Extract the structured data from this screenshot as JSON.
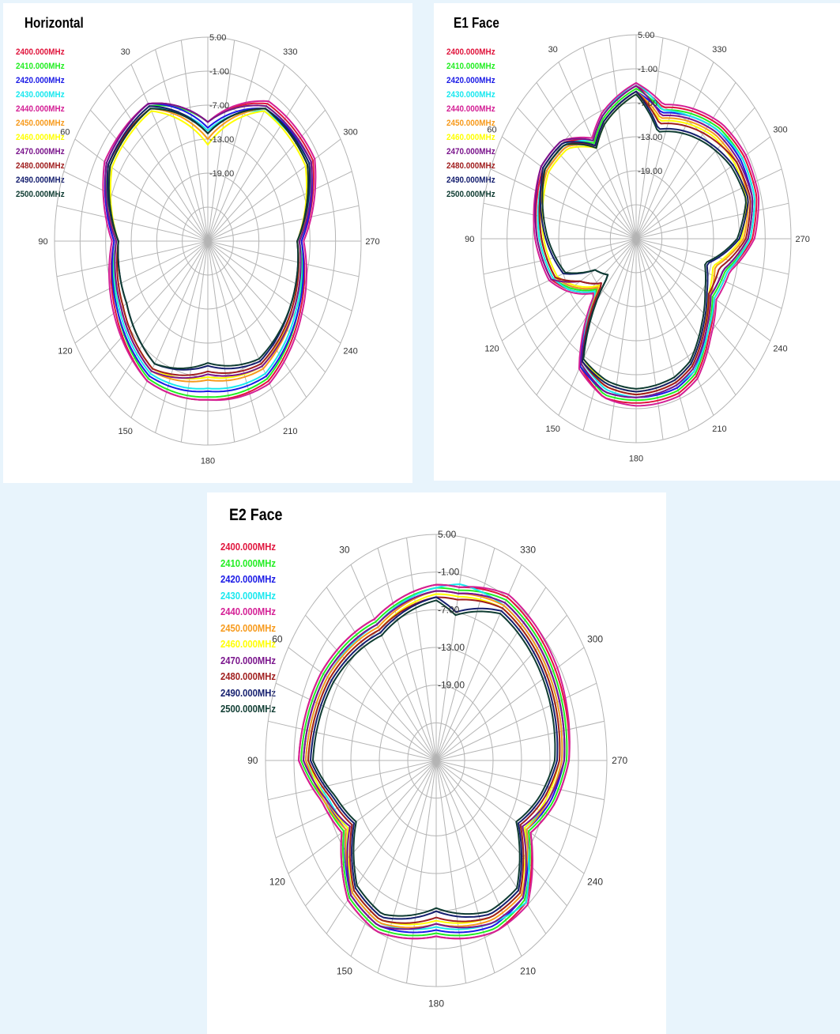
{
  "series_colors": [
    "#e0143c",
    "#22ee22",
    "#1a1ae6",
    "#19e8ef",
    "#d41f95",
    "#f79a1c",
    "#ffff00",
    "#7a148c",
    "#a01e1e",
    "#141e6e",
    "#0f3c32"
  ],
  "chart_data": [
    {
      "type": "polar-line",
      "title": "Horizontal",
      "legend": [
        "2400.000MHz",
        "2410.000MHz",
        "2420.000MHz",
        "2430.000MHz",
        "2440.000MHz",
        "2450.000MHz",
        "2460.000MHz",
        "2470.000MHz",
        "2480.000MHz",
        "2490.000MHz",
        "2500.000MHz"
      ],
      "radial_ticks": [
        "5.00",
        "-1.00",
        "-7.00",
        "-13.00",
        "-19.00"
      ],
      "angle_ticks": [
        "30",
        "60",
        "90",
        "120",
        "150",
        "180",
        "210",
        "240",
        "270",
        "300",
        "330"
      ],
      "rlim": [
        -31,
        5
      ],
      "theta": [
        0,
        30,
        60,
        90,
        120,
        150,
        180,
        210,
        240,
        270,
        300,
        330
      ],
      "series": [
        {
          "values": [
            -10,
            -3,
            -3.5,
            -9,
            -6,
            -2.5,
            -3,
            -2.5,
            -6,
            -9,
            -2.5,
            -3
          ]
        },
        {
          "values": [
            -10,
            -3.5,
            -4,
            -9.5,
            -6.5,
            -3,
            -3.5,
            -3,
            -6.5,
            -9.5,
            -3,
            -3.5
          ]
        },
        {
          "values": [
            -11,
            -3,
            -3.5,
            -9,
            -6.5,
            -3.5,
            -4.5,
            -3.5,
            -6.5,
            -9,
            -3,
            -4
          ]
        },
        {
          "values": [
            -11.5,
            -4,
            -4.5,
            -9.5,
            -7,
            -4,
            -5,
            -4,
            -7,
            -9.5,
            -3.5,
            -4.5
          ]
        },
        {
          "values": [
            -10,
            -3,
            -3,
            -8.5,
            -5.5,
            -2.5,
            -3,
            -2,
            -5.5,
            -8.5,
            -2,
            -2.5
          ]
        },
        {
          "values": [
            -13,
            -4,
            -4.5,
            -9.5,
            -7.5,
            -4.5,
            -6.5,
            -5,
            -7.5,
            -9.5,
            -4,
            -4
          ]
        },
        {
          "values": [
            -14,
            -4.5,
            -5,
            -10,
            -8,
            -5,
            -7,
            -5.5,
            -8,
            -10,
            -4.5,
            -4.5
          ]
        },
        {
          "values": [
            -10,
            -3,
            -3.5,
            -9.5,
            -7.5,
            -4.5,
            -7.5,
            -5.5,
            -7.5,
            -9.5,
            -3,
            -3.5
          ]
        },
        {
          "values": [
            -12,
            -4,
            -4,
            -10,
            -8,
            -5,
            -8,
            -6,
            -8,
            -10,
            -4,
            -4
          ]
        },
        {
          "values": [
            -12,
            -3.5,
            -4,
            -10,
            -9,
            -6,
            -9,
            -6.5,
            -8.5,
            -10,
            -3.5,
            -4
          ]
        },
        {
          "values": [
            -12,
            -4,
            -4.5,
            -10,
            -9,
            -6,
            -9.5,
            -7,
            -8.5,
            -10,
            -4,
            -4
          ]
        }
      ]
    },
    {
      "type": "polar-line",
      "title": "E1 Face",
      "legend": [
        "2400.000MHz",
        "2410.000MHz",
        "2420.000MHz",
        "2430.000MHz",
        "2440.000MHz",
        "2450.000MHz",
        "2460.000MHz",
        "2470.000MHz",
        "2480.000MHz",
        "2490.000MHz",
        "2500.000MHz"
      ],
      "radial_ticks": [
        "5.00",
        "-1.00",
        "-7.00",
        "-13.00",
        "-19.00"
      ],
      "angle_ticks": [
        "30",
        "60",
        "90",
        "120",
        "150",
        "180",
        "210",
        "240",
        "270",
        "300",
        "330"
      ],
      "rlim": [
        -31,
        5
      ],
      "theta": [
        0,
        20,
        30,
        45,
        60,
        90,
        110,
        120,
        135,
        150,
        165,
        180,
        200,
        210,
        225,
        240,
        255,
        270,
        285,
        300,
        315,
        330,
        345
      ],
      "series": [
        {
          "values": [
            -4,
            -8,
            -11,
            -7,
            -6,
            -8,
            -10,
            -13,
            -18,
            -5,
            -2,
            -2,
            -2,
            -3,
            -7,
            -10,
            -9,
            -4,
            -2,
            -2,
            -3,
            -5,
            -7
          ]
        },
        {
          "values": [
            -4.5,
            -8.5,
            -11.5,
            -7.5,
            -6.5,
            -8.5,
            -10.5,
            -13.5,
            -18.5,
            -5.5,
            -2.5,
            -2.5,
            -2.5,
            -3.5,
            -7.5,
            -10.5,
            -9.5,
            -4.5,
            -2.5,
            -2.5,
            -3.5,
            -5.5,
            -7.5
          ]
        },
        {
          "values": [
            -5,
            -9,
            -12,
            -8,
            -7,
            -9,
            -11,
            -14,
            -19,
            -5,
            -3,
            -3,
            -3,
            -4,
            -8,
            -11,
            -10,
            -5,
            -3,
            -3,
            -4,
            -6,
            -8
          ]
        },
        {
          "values": [
            -3.5,
            -8,
            -11,
            -7.5,
            -6.5,
            -8.5,
            -10.5,
            -13,
            -18,
            -6,
            -3.5,
            -3,
            -3.5,
            -4,
            -7.5,
            -10,
            -9,
            -4.5,
            -2.5,
            -2.5,
            -4,
            -6,
            -7.5
          ]
        },
        {
          "values": [
            -3.5,
            -7.5,
            -10.5,
            -6.5,
            -5.5,
            -7.5,
            -9.5,
            -12.5,
            -17.5,
            -4.5,
            -2,
            -1.5,
            -1.5,
            -2.5,
            -6.5,
            -9.5,
            -8.5,
            -3.5,
            -1.5,
            -1.5,
            -2.5,
            -4.5,
            -6.5
          ]
        },
        {
          "values": [
            -5,
            -9,
            -12,
            -8,
            -7,
            -9,
            -11,
            -14,
            -19,
            -6,
            -4,
            -3.5,
            -4,
            -5,
            -8.5,
            -11,
            -12,
            -6,
            -4,
            -4,
            -5,
            -7,
            -9
          ]
        },
        {
          "values": [
            -5.5,
            -9.5,
            -12.5,
            -8.5,
            -7.5,
            -9.5,
            -11.5,
            -14.5,
            -19.5,
            -6.5,
            -4.5,
            -4,
            -4.5,
            -5.5,
            -9,
            -11.5,
            -12.5,
            -6.5,
            -4.5,
            -4.5,
            -5.5,
            -7.5,
            -9.5
          ]
        },
        {
          "values": [
            -4,
            -8,
            -11,
            -6.5,
            -5.5,
            -8,
            -10,
            -16,
            -20,
            -5.5,
            -3,
            -3,
            -3.5,
            -4.5,
            -8,
            -11,
            -10,
            -5,
            -3,
            -3.5,
            -4.5,
            -6.5,
            -8.5
          ]
        },
        {
          "values": [
            -5,
            -9,
            -12,
            -7.5,
            -6.5,
            -9,
            -11,
            -16,
            -20,
            -6,
            -4,
            -3.5,
            -4,
            -5,
            -8.5,
            -11.5,
            -11,
            -5.5,
            -3.5,
            -4,
            -6,
            -8,
            -10
          ]
        },
        {
          "values": [
            -5,
            -9,
            -12,
            -7,
            -6,
            -10,
            -13,
            -20,
            -22,
            -6,
            -4.5,
            -4,
            -4.5,
            -5.5,
            -9,
            -12,
            -14,
            -7,
            -4,
            -5,
            -7,
            -9,
            -11
          ]
        },
        {
          "values": [
            -5.5,
            -9.5,
            -12.5,
            -7.5,
            -6.5,
            -10.5,
            -13.5,
            -20,
            -22,
            -6.5,
            -5,
            -4.5,
            -5,
            -6,
            -9.5,
            -12.5,
            -14.5,
            -7.5,
            -4.5,
            -5.5,
            -7.5,
            -9.5,
            -11.5
          ]
        }
      ]
    },
    {
      "type": "polar-line",
      "title": "E2 Face",
      "legend": [
        "2400.000MHz",
        "2410.000MHz",
        "2420.000MHz",
        "2430.000MHz",
        "2440.000MHz",
        "2450.000MHz",
        "2460.000MHz",
        "2470.000MHz",
        "2480.000MHz",
        "2490.000MHz",
        "2500.000MHz"
      ],
      "radial_ticks": [
        "5.00",
        "-1.00",
        "-7.00",
        "-13.00",
        "-19.00"
      ],
      "angle_ticks": [
        "30",
        "60",
        "90",
        "120",
        "150",
        "180",
        "210",
        "240",
        "270",
        "300",
        "330"
      ],
      "rlim": [
        -31,
        5
      ],
      "theta": [
        0,
        30,
        60,
        90,
        105,
        120,
        140,
        155,
        180,
        205,
        220,
        240,
        255,
        270,
        300,
        330,
        350
      ],
      "series": [
        {
          "values": [
            -3,
            -5,
            -3,
            -2,
            -6,
            -8,
            -2,
            -1,
            -3,
            -1,
            -1.5,
            -8,
            -5,
            -3,
            -2,
            -1,
            -3
          ]
        },
        {
          "values": [
            -3.5,
            -5.5,
            -3.5,
            -2.5,
            -6.5,
            -8.5,
            -2.5,
            -1.5,
            -3.5,
            -1.5,
            -2,
            -8.5,
            -5.5,
            -3.5,
            -2.5,
            -1.5,
            -3.5
          ]
        },
        {
          "values": [
            -4,
            -6,
            -4,
            -3,
            -7,
            -9,
            -3,
            -2,
            -4,
            -2,
            -2.5,
            -9,
            -6,
            -4,
            -3,
            -2,
            -4
          ]
        },
        {
          "values": [
            -3.5,
            -6,
            -4.5,
            -3.5,
            -7.5,
            -9.5,
            -3.5,
            -2.5,
            -4.5,
            -2.5,
            -1.5,
            -9.5,
            -6.5,
            -4.5,
            -3.5,
            -2.5,
            -2.5
          ]
        },
        {
          "values": [
            -3,
            -5,
            -3,
            -2,
            -6,
            -8,
            -2,
            -1,
            -3,
            -1,
            -1,
            -8,
            -5,
            -3,
            -1.5,
            -0.5,
            -3
          ]
        },
        {
          "values": [
            -4,
            -6.5,
            -4.5,
            -3.5,
            -6.5,
            -9,
            -3.5,
            -2.5,
            -5,
            -3,
            -3,
            -9,
            -6.5,
            -4.5,
            -3.5,
            -2.5,
            -4
          ]
        },
        {
          "values": [
            -4.5,
            -7,
            -5,
            -4,
            -7,
            -9.5,
            -4,
            -3,
            -5.5,
            -3.5,
            -3.5,
            -9.5,
            -7,
            -5,
            -4,
            -3,
            -4.5
          ]
        },
        {
          "values": [
            -4,
            -6,
            -4,
            -3,
            -7,
            -10,
            -3,
            -2,
            -5,
            -2.5,
            -2.5,
            -10,
            -6.5,
            -4,
            -3,
            -2,
            -4
          ]
        },
        {
          "values": [
            -5,
            -7,
            -5,
            -4,
            -8,
            -10.5,
            -4,
            -3,
            -6,
            -3.5,
            -3.5,
            -10.5,
            -7.5,
            -5,
            -4,
            -3,
            -5
          ]
        },
        {
          "values": [
            -5,
            -7.5,
            -5.5,
            -4.5,
            -8.5,
            -11,
            -4.5,
            -3.5,
            -7,
            -4,
            -4,
            -11,
            -8,
            -5.5,
            -4.5,
            -3.5,
            -7
          ]
        },
        {
          "values": [
            -5.5,
            -8,
            -6,
            -5,
            -9,
            -11.5,
            -5,
            -4,
            -7.5,
            -4.5,
            -4.5,
            -11.5,
            -8.5,
            -6,
            -5,
            -4,
            -7.5
          ]
        }
      ]
    }
  ]
}
